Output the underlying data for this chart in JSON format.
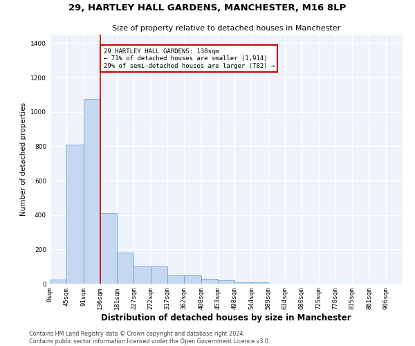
{
  "title": "29, HARTLEY HALL GARDENS, MANCHESTER, M16 8LP",
  "subtitle": "Size of property relative to detached houses in Manchester",
  "xlabel": "Distribution of detached houses by size in Manchester",
  "ylabel": "Number of detached properties",
  "footer_line1": "Contains HM Land Registry data © Crown copyright and database right 2024.",
  "footer_line2": "Contains public sector information licensed under the Open Government Licence v3.0.",
  "bar_labels": [
    "0sqm",
    "45sqm",
    "91sqm",
    "136sqm",
    "181sqm",
    "227sqm",
    "272sqm",
    "317sqm",
    "362sqm",
    "408sqm",
    "453sqm",
    "498sqm",
    "544sqm",
    "589sqm",
    "634sqm",
    "680sqm",
    "725sqm",
    "770sqm",
    "815sqm",
    "861sqm",
    "906sqm"
  ],
  "bar_values": [
    25,
    810,
    1075,
    410,
    182,
    100,
    100,
    47,
    47,
    30,
    20,
    10,
    8,
    0,
    0,
    0,
    0,
    0,
    0,
    0,
    0
  ],
  "bar_color": "#c5d8f0",
  "bar_edge_color": "#5b9bd5",
  "background_color": "#eef2fa",
  "grid_color": "#ffffff",
  "annotation_box_text": "29 HARTLEY HALL GARDENS: 138sqm\n← 71% of detached houses are smaller (1,914)\n29% of semi-detached houses are larger (782) →",
  "annotation_box_color": "#ffffff",
  "annotation_box_edge_color": "#cc0000",
  "property_line_color": "#cc0000",
  "ylim": [
    0,
    1450
  ],
  "yticks": [
    0,
    200,
    400,
    600,
    800,
    1000,
    1200,
    1400
  ],
  "title_fontsize": 9.5,
  "subtitle_fontsize": 8,
  "axis_label_fontsize": 7.5,
  "tick_fontsize": 6.5,
  "annotation_fontsize": 6.5,
  "footer_fontsize": 5.8
}
